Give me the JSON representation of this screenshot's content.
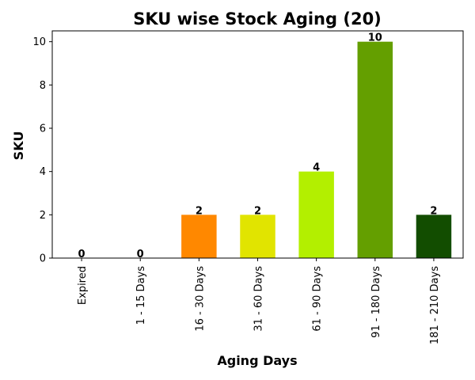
{
  "chart_data": {
    "type": "bar",
    "title": "SKU wise Stock Aging (20)",
    "xlabel": "Aging Days",
    "ylabel": "SKU",
    "categories": [
      "Expired",
      "1 - 15 Days",
      "16 - 30 Days",
      "31 - 60 Days",
      "61 - 90 Days",
      "91 - 180 Days",
      "181 - 210 Days"
    ],
    "values": [
      0,
      0,
      2,
      2,
      4,
      10,
      2
    ],
    "data_labels": [
      "0",
      "0",
      "2",
      "2",
      "4",
      "10",
      "2"
    ],
    "colors": [
      "#000000",
      "#000000",
      "#ff8800",
      "#e1e400",
      "#b3ef00",
      "#649f00",
      "#124d00"
    ],
    "ylim": [
      0,
      10.5
    ],
    "yticks": [
      0,
      2,
      4,
      6,
      8,
      10
    ],
    "ytick_labels": [
      "0",
      "2",
      "4",
      "6",
      "8",
      "10"
    ],
    "grid": false,
    "legend": "none"
  }
}
